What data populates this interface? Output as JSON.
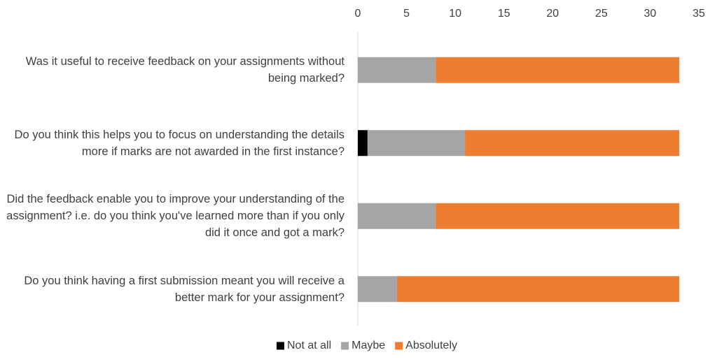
{
  "chart_data": {
    "type": "stacked-barh",
    "categories": [
      "Was it useful to receive feedback on your assignments without being marked?",
      "Do you think this helps you to focus on understanding the details more if marks are not awarded in the first instance?",
      "Did the feedback enable you to improve your understanding of the assignment? i.e. do you think you've learned more than if you only did it once and got a mark?",
      "Do you think having a first submission meant you will receive a better mark for your assignment?"
    ],
    "series": [
      {
        "name": "Not at all",
        "color": "#000000",
        "values": [
          0,
          1,
          0,
          0
        ]
      },
      {
        "name": "Maybe",
        "color": "#a5a5a5",
        "values": [
          8,
          10,
          8,
          4
        ]
      },
      {
        "name": "Absolutely",
        "color": "#ed7d31",
        "values": [
          25,
          22,
          25,
          29
        ]
      }
    ],
    "xlim": [
      0,
      35
    ],
    "xticks": [
      0,
      5,
      10,
      15,
      20,
      25,
      30,
      35
    ],
    "legend": "bottom"
  }
}
